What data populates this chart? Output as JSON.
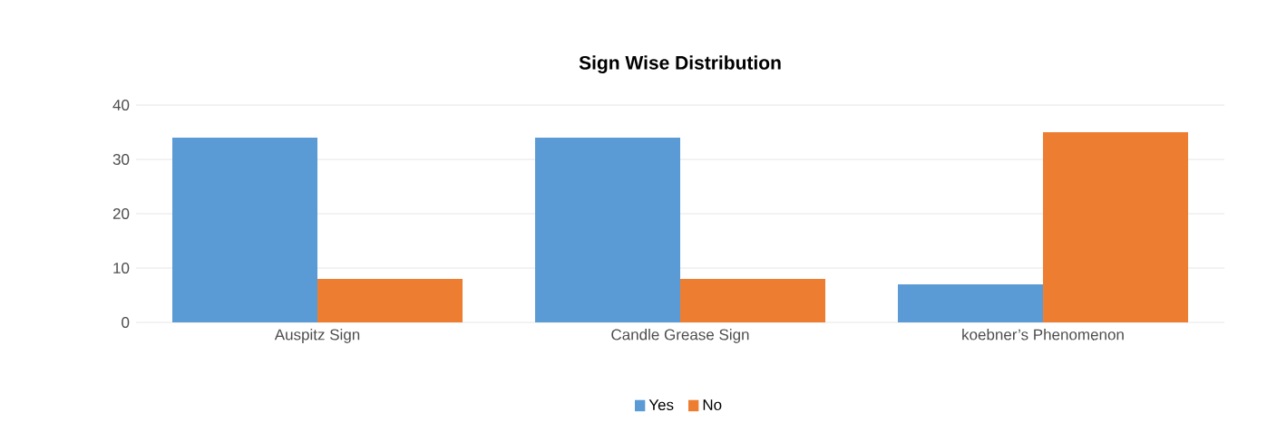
{
  "chart_data": {
    "type": "bar",
    "title": "Sign Wise Distribution",
    "categories": [
      "Auspitz Sign",
      "Candle Grease Sign",
      "koebner’s Phenomenon"
    ],
    "series": [
      {
        "name": "Yes",
        "color": "#5b9bd5",
        "values": [
          34,
          34,
          7
        ]
      },
      {
        "name": "No",
        "color": "#ed7d31",
        "values": [
          8,
          8,
          35
        ]
      }
    ],
    "ylim": [
      0,
      40
    ],
    "yticks": [
      0,
      10,
      20,
      30,
      40
    ],
    "grid": "y",
    "legend": "bottom"
  }
}
